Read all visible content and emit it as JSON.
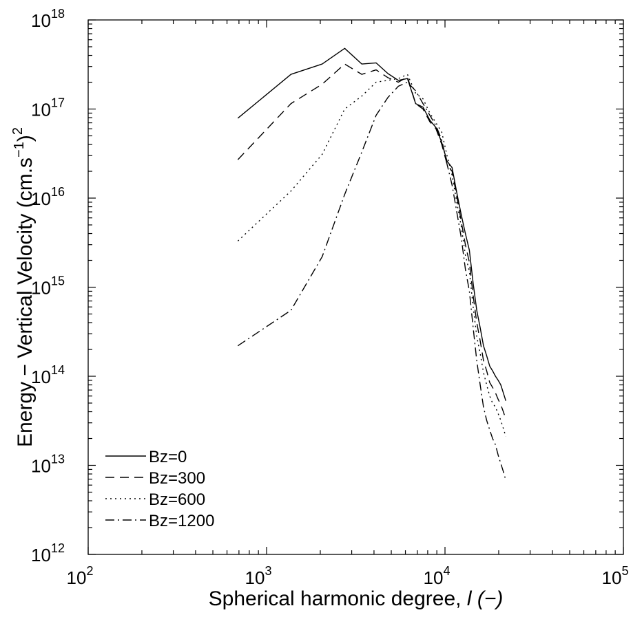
{
  "chart_data": {
    "type": "line",
    "xscale": "log",
    "yscale": "log",
    "xlim": [
      100,
      100000
    ],
    "ylim": [
      1000000000000.0,
      1e+18
    ],
    "grid": false,
    "legend_position": "bottom-left",
    "xlabel": {
      "main": "Spherical harmonic degree, ",
      "var": "l",
      "unit": " (−)"
    },
    "ylabel": {
      "main": "Energy − Vertical Velocity  (cm.s",
      "sup1": "−1",
      "close": ")",
      "sup2": "2"
    },
    "x_ticks": [
      {
        "value": 100,
        "base": "10",
        "exp": "2"
      },
      {
        "value": 1000,
        "base": "10",
        "exp": "3"
      },
      {
        "value": 10000,
        "base": "10",
        "exp": "4"
      },
      {
        "value": 100000,
        "base": "10",
        "exp": "5"
      }
    ],
    "y_ticks": [
      {
        "value": 1000000000000.0,
        "base": "10",
        "exp": "12"
      },
      {
        "value": 10000000000000.0,
        "base": "10",
        "exp": "13"
      },
      {
        "value": 100000000000000.0,
        "base": "10",
        "exp": "14"
      },
      {
        "value": 1000000000000000.0,
        "base": "10",
        "exp": "15"
      },
      {
        "value": 1e+16,
        "base": "10",
        "exp": "16"
      },
      {
        "value": 1e+17,
        "base": "10",
        "exp": "17"
      },
      {
        "value": 1e+18,
        "base": "10",
        "exp": "18"
      }
    ],
    "series": [
      {
        "name": "Bz=0",
        "dash": "",
        "x": [
          690,
          1370,
          2050,
          2740,
          3420,
          4110,
          4790,
          5480,
          6160,
          6850,
          7530,
          8220,
          8900,
          9590,
          10270,
          10960,
          11640,
          12330,
          13010,
          13700,
          14380,
          15070,
          15750,
          16440,
          17120,
          17810,
          18490,
          19180,
          19860,
          20550,
          21230,
          21920
        ],
        "y": [
          7.9e+16,
          2.45e+17,
          3.2e+17,
          4.8e+17,
          3.2e+17,
          3.3e+17,
          2.5e+17,
          2.1e+17,
          2.2e+17,
          1.15e+17,
          1.05e+17,
          7.5e+16,
          6.2e+16,
          4.2e+16,
          2.6e+16,
          2.2e+16,
          1.15e+16,
          6500000000000000.0,
          4000000000000000.0,
          2600000000000000.0,
          1100000000000000.0,
          550000000000000.0,
          350000000000000.0,
          220000000000000.0,
          170000000000000.0,
          130000000000000.0,
          115000000000000.0,
          100000000000000.0,
          90000000000000.0,
          80000000000000.0,
          65000000000000.0,
          53000000000000.0
        ]
      },
      {
        "name": "Bz=300",
        "dash": "13,8",
        "x": [
          690,
          1370,
          2050,
          2740,
          3420,
          4110,
          4790,
          5480,
          6160,
          6850,
          7530,
          8220,
          8900,
          9590,
          10270,
          10960,
          11640,
          12330,
          13010,
          13700,
          14380,
          15070,
          15750,
          16440,
          17120,
          17810,
          18490,
          19180,
          19860,
          20550,
          21230,
          21920
        ],
        "y": [
          2.7e+16,
          1.15e+17,
          1.9e+17,
          3.2e+17,
          2.45e+17,
          2.75e+17,
          2.25e+17,
          2e+17,
          2.3e+17,
          1.15e+17,
          1e+17,
          7.2e+16,
          6e+16,
          4e+16,
          2.4e+16,
          2e+16,
          1.05e+16,
          5500000000000000.0,
          3000000000000000.0,
          1900000000000000.0,
          800000000000000.0,
          400000000000000.0,
          250000000000000.0,
          150000000000000.0,
          115000000000000.0,
          85000000000000.0,
          75000000000000.0,
          65000000000000.0,
          55000000000000.0,
          48000000000000.0,
          40000000000000.0,
          33000000000000.0
        ]
      },
      {
        "name": "Bz=600",
        "dash": "2,5",
        "x": [
          690,
          1370,
          2050,
          2740,
          3420,
          4110,
          4790,
          5480,
          6160,
          6850,
          7530,
          8220,
          8900,
          9590,
          10270,
          10960,
          11640,
          12330,
          13010,
          13700,
          14380,
          15070,
          15750,
          16440,
          17120,
          17810,
          18490,
          19180,
          19860,
          20550,
          21230,
          21920
        ],
        "y": [
          3300000000000000.0,
          1.2e+16,
          3.1e+16,
          1e+17,
          1.4e+17,
          2e+17,
          2.1e+17,
          2.2e+17,
          2.45e+17,
          1.5e+17,
          1.3e+17,
          9e+16,
          7e+16,
          5.5e+16,
          3e+16,
          1.8e+16,
          9000000000000000.0,
          4800000000000000.0,
          2300000000000000.0,
          1500000000000000.0,
          600000000000000.0,
          280000000000000.0,
          180000000000000.0,
          110000000000000.0,
          80000000000000.0,
          60000000000000.0,
          50000000000000.0,
          45000000000000.0,
          38000000000000.0,
          32000000000000.0,
          26000000000000.0,
          21000000000000.0
        ]
      },
      {
        "name": "Bz=1200",
        "dash": "13,5,2,5",
        "x": [
          690,
          1370,
          2050,
          2740,
          3420,
          4110,
          4790,
          5480,
          6160,
          6850,
          7530,
          8220,
          8900,
          9590,
          10270,
          10960,
          11640,
          12330,
          13010,
          13700,
          14380,
          15070,
          15750,
          16440,
          17120,
          17810,
          18490,
          19180,
          19860,
          20550,
          21230,
          21920
        ],
        "y": [
          220000000000000.0,
          550000000000000.0,
          2200000000000000.0,
          1.1e+16,
          3.3e+16,
          8.5e+16,
          1.35e+17,
          1.8e+17,
          2e+17,
          1.6e+17,
          1.15e+17,
          8.5e+16,
          6.5e+16,
          4.5e+16,
          2.4e+16,
          1.4e+16,
          7000000000000000.0,
          3600000000000000.0,
          1600000000000000.0,
          900000000000000.0,
          350000000000000.0,
          150000000000000.0,
          80000000000000.0,
          45000000000000.0,
          32000000000000.0,
          25000000000000.0,
          20000000000000.0,
          17000000000000.0,
          13000000000000.0,
          10500000000000.0,
          8500000000000.0,
          6800000000000.0
        ]
      }
    ]
  }
}
